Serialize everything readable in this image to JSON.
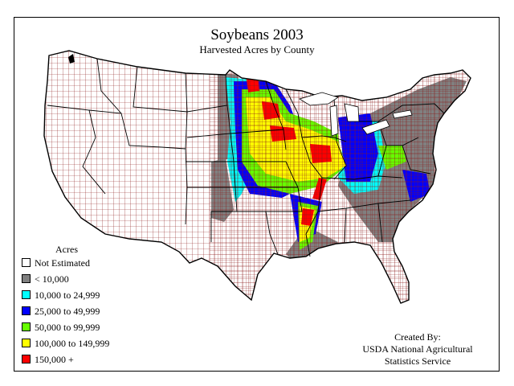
{
  "map": {
    "title": "Soybeans 2003",
    "subtitle": "Harvested Acres by County"
  },
  "legend": {
    "heading": "Acres",
    "items": [
      {
        "label": "Not Estimated",
        "color": "#ffffff"
      },
      {
        "label": "< 10,000",
        "color": "#808080"
      },
      {
        "label": "10,000 to 24,999",
        "color": "#00ffff"
      },
      {
        "label": "25,000 to 49,999",
        "color": "#0000ff"
      },
      {
        "label": "50,000 to 99,999",
        "color": "#66ff00"
      },
      {
        "label": "100,000 to 149,999",
        "color": "#ffff00"
      },
      {
        "label": "150,000 +",
        "color": "#ff0000"
      }
    ]
  },
  "credit": {
    "line1": "Created By:",
    "line2": "USDA National Agricultural",
    "line3": "Statistics Service"
  },
  "colors": {
    "county_border": "#8b1a1a",
    "state_border": "#000000",
    "background": "#ffffff"
  }
}
